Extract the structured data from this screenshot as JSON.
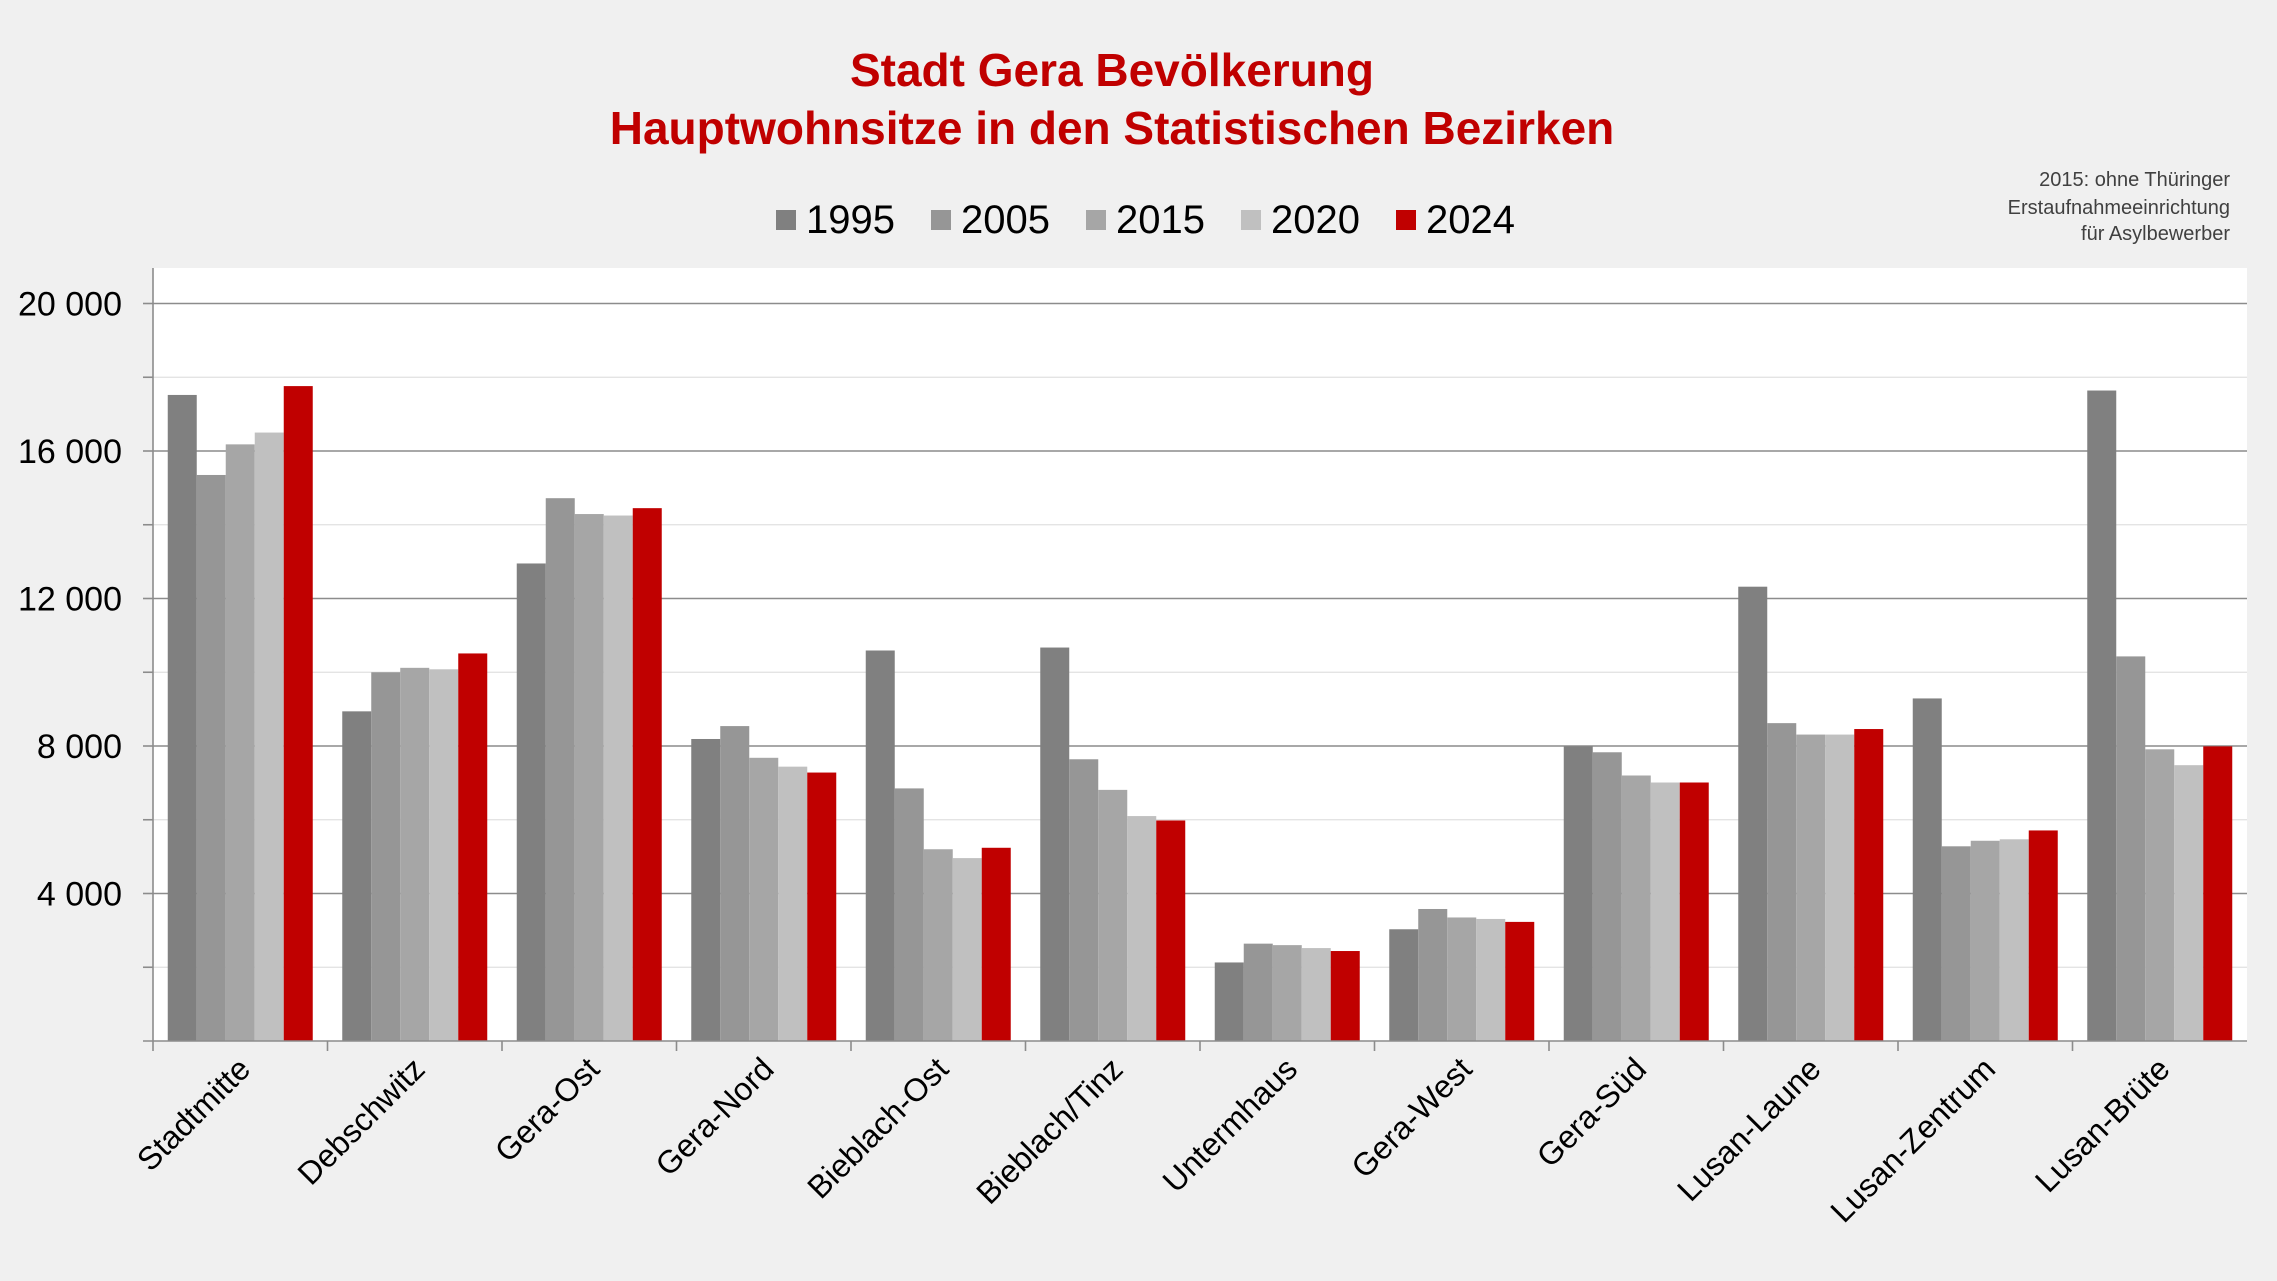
{
  "chart_data": {
    "type": "bar",
    "title": [
      "Stadt Gera Bevölkerung",
      "Hauptwohnsitze in den Statistischen Bezirken"
    ],
    "note": [
      "2015: ohne Thüringer",
      "Erstaufnahmeeinrichtung",
      "für Asylbewerber"
    ],
    "categories": [
      "Stadtmitte",
      "Debschwitz",
      "Gera-Ost",
      "Gera-Nord",
      "Bieblach-Ost",
      "Bieblach/Tinz",
      "Untermhaus",
      "Gera-West",
      "Gera-Süd",
      "Lusan-Laune",
      "Lusan-Zentrum",
      "Lusan-Brüte"
    ],
    "series": [
      {
        "name": "1995",
        "color": "#808080",
        "values": [
          17520,
          8940,
          12950,
          8190,
          10590,
          10670,
          2130,
          3030,
          7990,
          12320,
          9290,
          17640
        ]
      },
      {
        "name": "2005",
        "color": "#969696",
        "values": [
          15350,
          10000,
          14720,
          8540,
          6850,
          7640,
          2640,
          3580,
          7830,
          8620,
          5280,
          10430
        ]
      },
      {
        "name": "2015",
        "color": "#a6a6a6",
        "values": [
          16180,
          10120,
          14290,
          7680,
          5200,
          6810,
          2600,
          3350,
          7200,
          8310,
          5430,
          7910
        ]
      },
      {
        "name": "2020",
        "color": "#c0c0c0",
        "values": [
          16500,
          10080,
          14250,
          7440,
          4960,
          6100,
          2520,
          3310,
          7010,
          8310,
          5470,
          7480
        ]
      },
      {
        "name": "2024",
        "color": "#c00000",
        "values": [
          17760,
          10510,
          14450,
          7280,
          5240,
          5980,
          2440,
          3230,
          7010,
          8460,
          5710,
          7990
        ]
      }
    ],
    "yticks": [
      {
        "v": 4000,
        "label": "4 000"
      },
      {
        "v": 8000,
        "label": "8 000"
      },
      {
        "v": 12000,
        "label": "12 000"
      },
      {
        "v": 16000,
        "label": "16 000"
      },
      {
        "v": 20000,
        "label": "20 000"
      }
    ],
    "ylim": [
      0,
      21000
    ],
    "minor_grid_step": 2000,
    "grid": true,
    "legend": "top-center",
    "title_color": "#c00000"
  }
}
